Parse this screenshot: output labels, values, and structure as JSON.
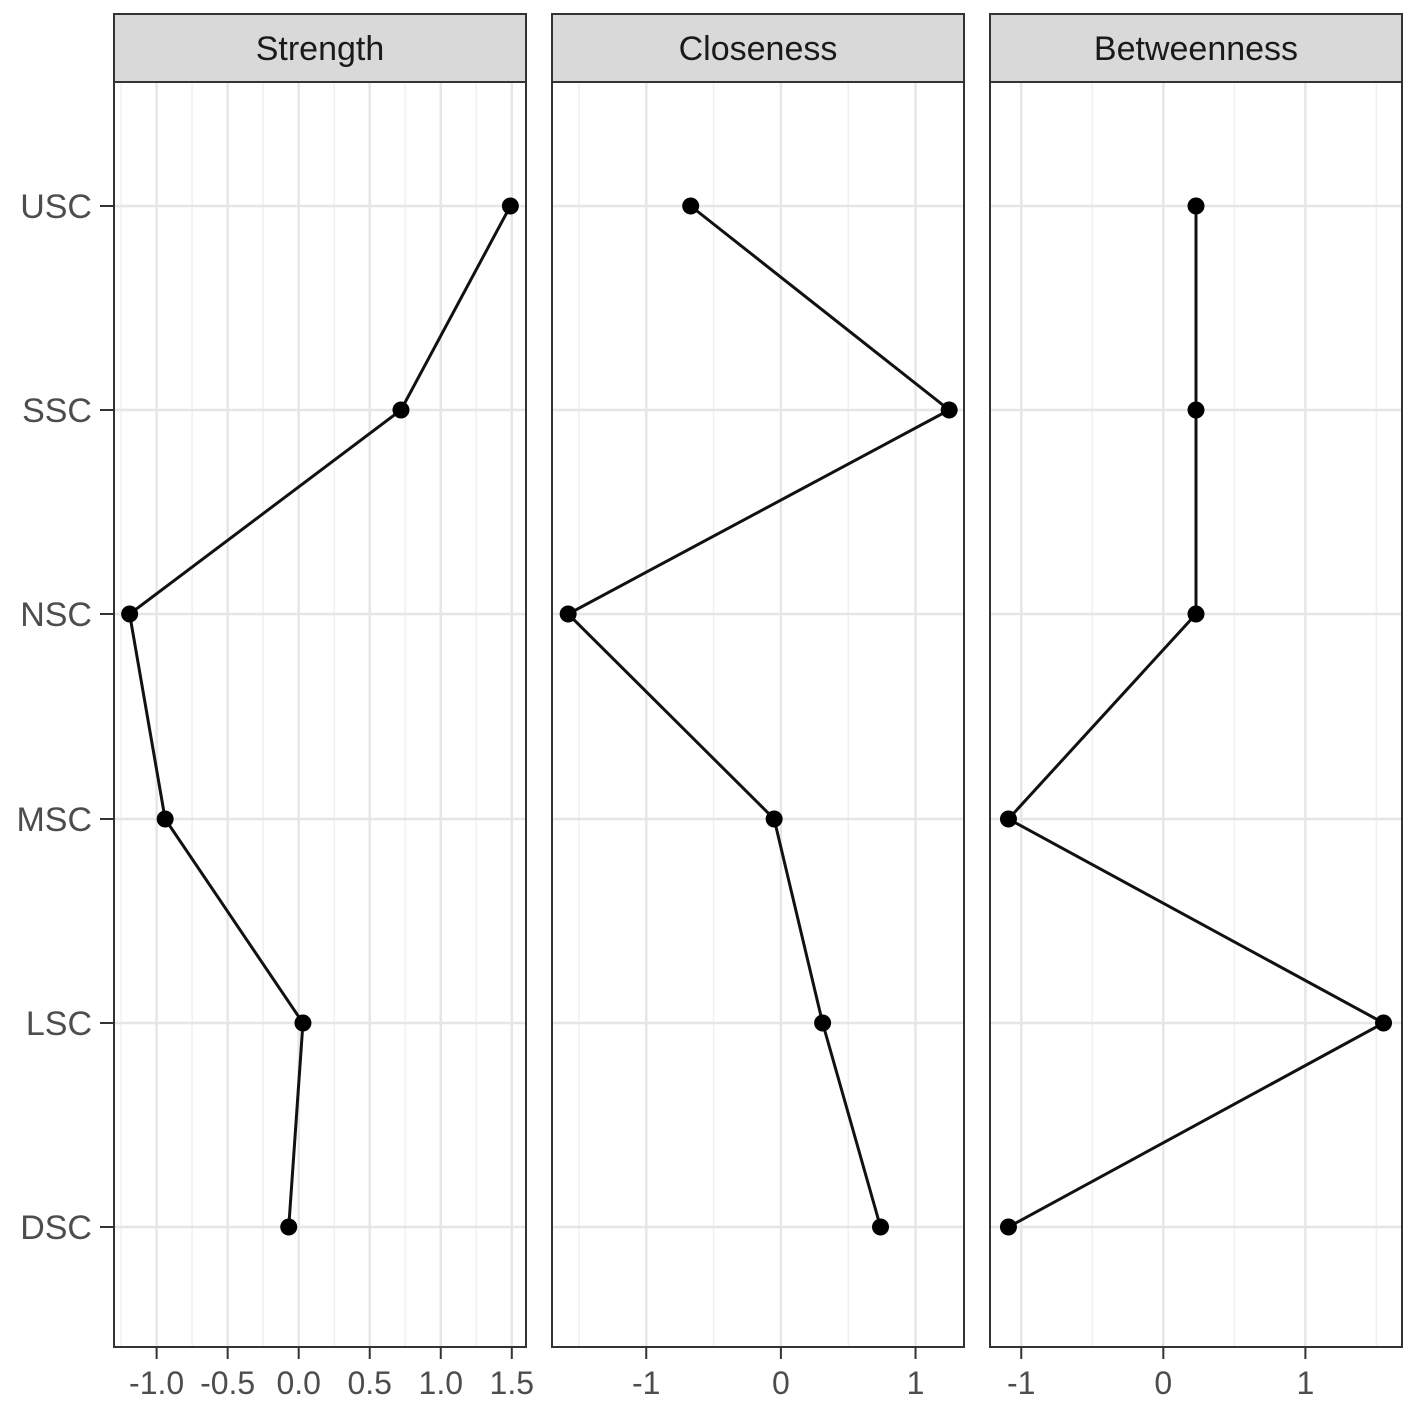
{
  "chart_data": {
    "type": "line",
    "categories": [
      "USC",
      "SSC",
      "NSC",
      "MSC",
      "LSC",
      "DSC"
    ],
    "grid": true,
    "panels": [
      {
        "name": "Strength",
        "values": [
          1.49,
          0.72,
          -1.19,
          -0.94,
          0.03,
          -0.07
        ],
        "xlim": [
          -1.3,
          1.6
        ],
        "xticks": [
          -1.0,
          -0.5,
          0.0,
          0.5,
          1.0,
          1.5
        ],
        "xtick_labels": [
          "-1.0",
          "-0.5",
          "0.0",
          "0.5",
          "1.0",
          "1.5"
        ]
      },
      {
        "name": "Closeness",
        "values": [
          -0.67,
          1.25,
          -1.58,
          -0.05,
          0.31,
          0.74
        ],
        "xlim": [
          -1.7,
          1.36
        ],
        "xticks": [
          -1,
          0,
          1
        ],
        "xtick_labels": [
          "-1",
          "0",
          "1"
        ]
      },
      {
        "name": "Betweenness",
        "values": [
          0.23,
          0.23,
          0.23,
          -1.09,
          1.55,
          -1.09
        ],
        "xlim": [
          -1.22,
          1.68
        ],
        "xticks": [
          -1,
          0,
          1
        ],
        "xtick_labels": [
          "-1",
          "0",
          "1"
        ]
      }
    ]
  }
}
